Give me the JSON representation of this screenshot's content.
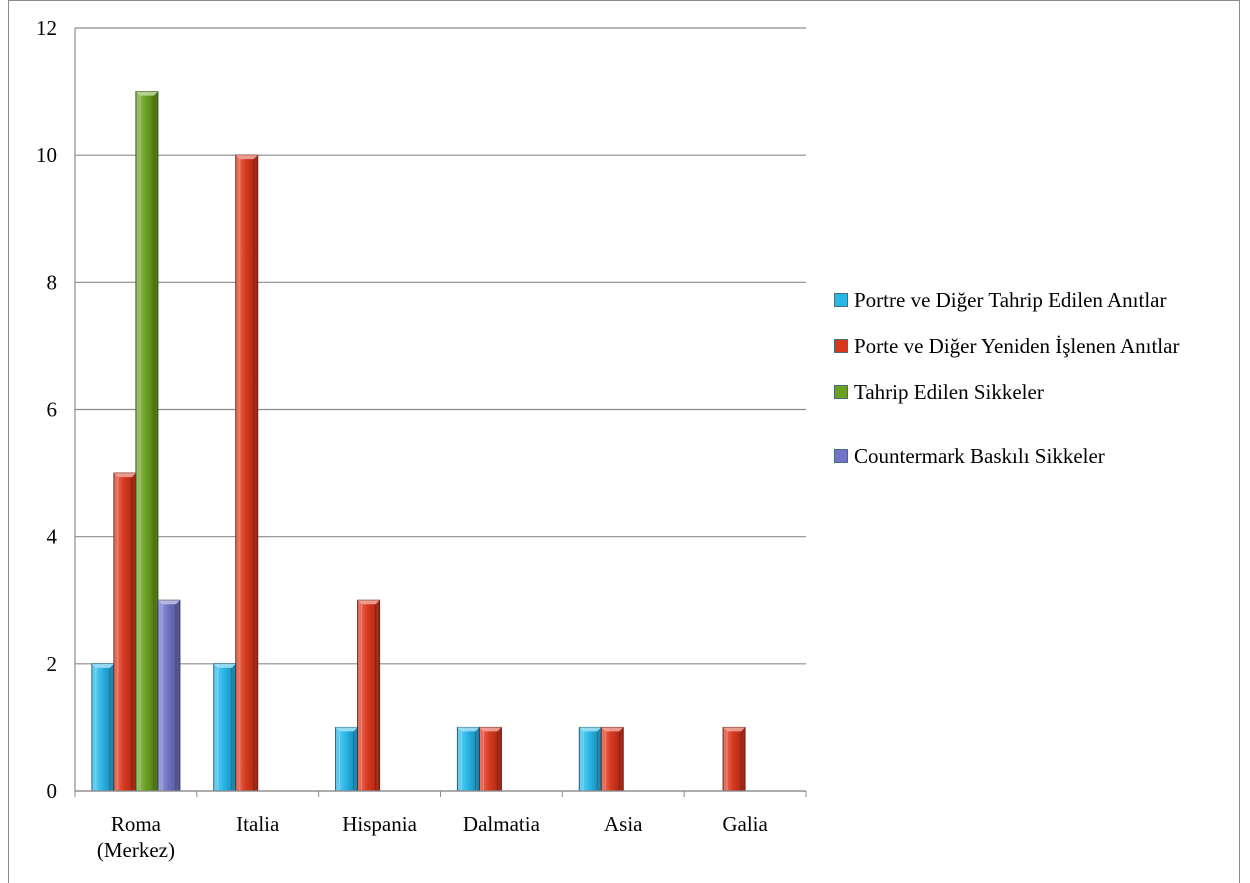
{
  "chart_data": {
    "type": "bar",
    "categories": [
      "Roma (Merkez)",
      "Italia",
      "Hispania",
      "Dalmatia",
      "Asia",
      "Galia"
    ],
    "category_lines": [
      [
        "Roma",
        "(Merkez)"
      ],
      [
        "Italia"
      ],
      [
        "Hispania"
      ],
      [
        "Dalmatia"
      ],
      [
        "Asia"
      ],
      [
        "Galia"
      ]
    ],
    "series": [
      {
        "name": "Portre ve Diğer Tahrip Edilen Anıtlar",
        "color": "#29b6e8",
        "values": [
          2,
          2,
          1,
          1,
          1,
          0
        ]
      },
      {
        "name": "Porte ve Diğer Yeniden İşlenen Anıtlar",
        "color": "#d9381e",
        "values": [
          5,
          10,
          3,
          1,
          1,
          1
        ]
      },
      {
        "name": "Tahrip Edilen Sikkeler",
        "color": "#6aa121",
        "values": [
          11,
          0,
          0,
          0,
          0,
          0
        ]
      },
      {
        "name": "Countermark Baskılı Sikkeler",
        "color": "#6f73c4",
        "values": [
          3,
          0,
          0,
          0,
          0,
          0
        ]
      }
    ],
    "yticks": [
      "0",
      "2",
      "4",
      "6",
      "8",
      "10",
      "12"
    ],
    "ylim": [
      0,
      12
    ],
    "grid": true,
    "legend_position": "right"
  }
}
